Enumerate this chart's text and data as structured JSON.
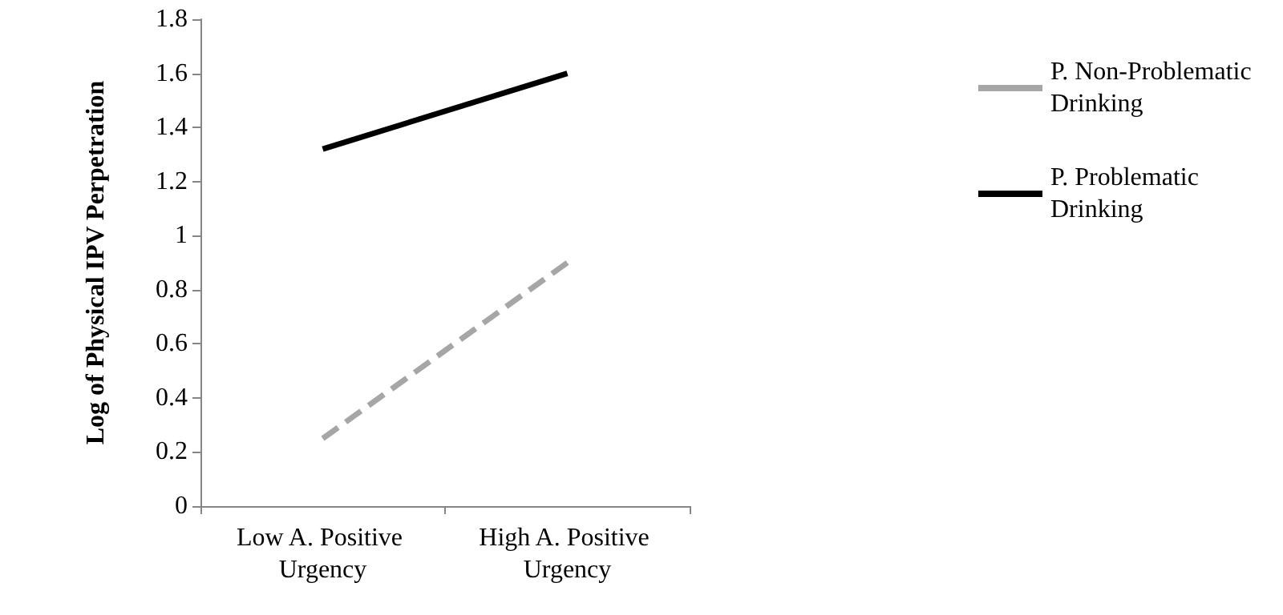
{
  "chart_data": {
    "type": "line",
    "ylabel": "Log of Physical IPV Perpetration",
    "categories": [
      "Low A. Positive Urgency",
      "High A. Positive Urgency"
    ],
    "series": [
      {
        "name": "P. Non-Problematic Drinking",
        "color": "#a6a6a6",
        "line_style": "dashed",
        "values": [
          0.25,
          0.9
        ]
      },
      {
        "name": "P. Problematic Drinking",
        "color": "#000000",
        "line_style": "solid",
        "values": [
          1.32,
          1.6
        ]
      }
    ],
    "ylim": [
      0,
      1.8
    ],
    "yticks": [
      0,
      0.2,
      0.4,
      0.6,
      0.8,
      1,
      1.2,
      1.4,
      1.6,
      1.8
    ],
    "grid": false,
    "legend": "right",
    "marker": "none"
  }
}
